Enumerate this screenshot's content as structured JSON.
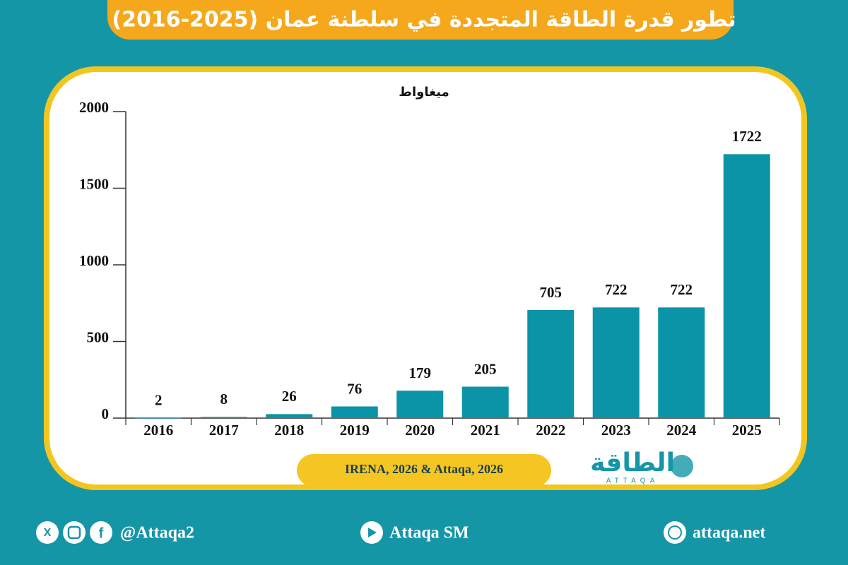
{
  "chart_data": {
    "type": "bar",
    "title": "تطور قدرة الطاقة المتجددة في سلطنة عمان (2025-2016)",
    "y_label": "ميغاواط",
    "categories": [
      "2016",
      "2017",
      "2018",
      "2019",
      "2020",
      "2021",
      "2022",
      "2023",
      "2024",
      "2025"
    ],
    "values": [
      2,
      8,
      26,
      76,
      179,
      205,
      705,
      722,
      722,
      1722
    ],
    "color": "#0b93a8",
    "ylim": [
      0,
      2000
    ],
    "yticks": [
      0,
      500,
      1000,
      1500,
      2000
    ],
    "source": "IRENA, 2026 & Attaqa, 2026"
  },
  "logo": {
    "text": "الطاقة",
    "sub": "ATTAQA"
  },
  "footer": {
    "social": "@Attaqa2",
    "youtube": "Attaqa SM",
    "website": "attaqa.net"
  }
}
